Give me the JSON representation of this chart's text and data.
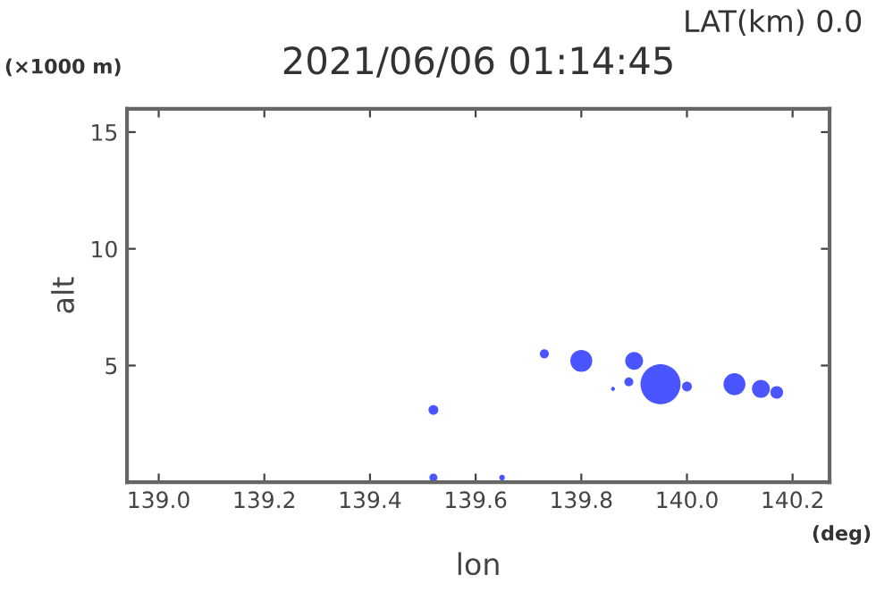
{
  "chart_data": {
    "type": "bubble",
    "title": "2021/06/06 01:14:45",
    "xlabel": "lon",
    "ylabel": "alt",
    "annotations": [
      "LAT(km) 0.0",
      "(×1000 m)",
      "(deg)"
    ],
    "series": [
      {
        "color": "#4a55ff",
        "x": [
          139.52,
          139.52,
          139.65,
          139.73,
          139.8,
          139.9,
          139.89,
          139.86,
          139.95,
          140.0,
          140.09,
          140.14,
          140.17
        ],
        "values": [
          3.1,
          0.2,
          0.2,
          5.5,
          5.2,
          5.2,
          4.3,
          4.0,
          4.2,
          4.1,
          4.2,
          4.0,
          3.85
        ],
        "sizes": [
          0.06,
          0.04,
          0.02,
          0.05,
          0.3,
          0.2,
          0.05,
          0.01,
          1,
          0.06,
          0.3,
          0.2,
          0.1
        ]
      }
    ],
    "xlim": [
      138.94,
      140.27
    ],
    "ylim": [
      0,
      16
    ],
    "xticks": [
      {
        "value": 139,
        "label": "139.0"
      },
      139.2,
      139.4,
      139.6,
      139.8,
      {
        "value": 140,
        "label": "140.0"
      },
      140.2
    ],
    "yticks": [
      5,
      10,
      15
    ],
    "grid": false,
    "legend": false
  }
}
